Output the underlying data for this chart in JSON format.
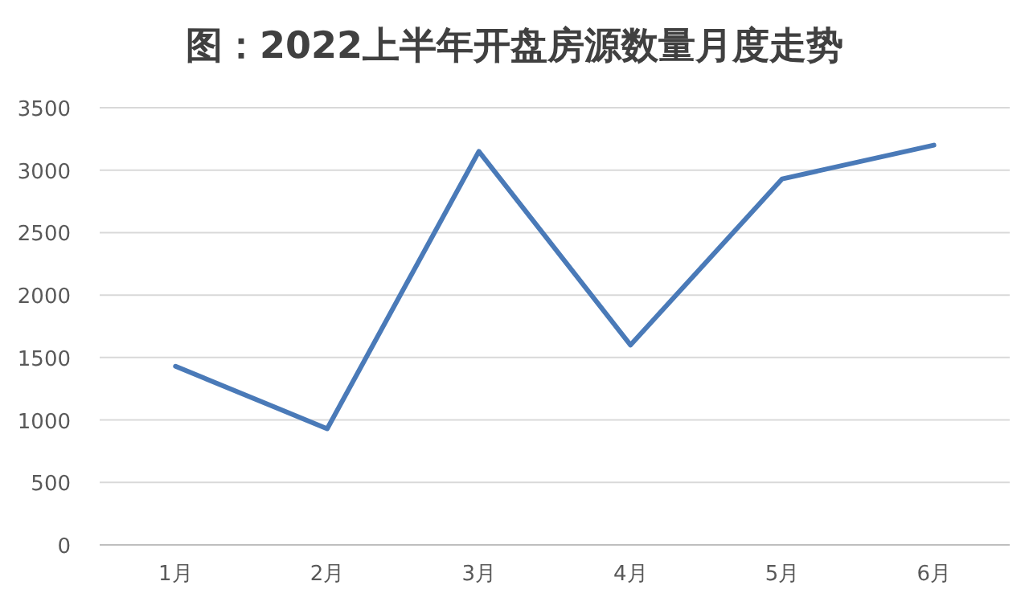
{
  "chart_data": {
    "type": "line",
    "title": "图：2022上半年开盘房源数量月度走势",
    "categories": [
      "1月",
      "2月",
      "3月",
      "4月",
      "5月",
      "6月"
    ],
    "values": [
      1430,
      930,
      3150,
      1600,
      2930,
      3200
    ],
    "color": "#4a7ab8",
    "ylim": [
      0,
      3500
    ],
    "yticks": [
      0,
      500,
      1000,
      1500,
      2000,
      2500,
      3000,
      3500
    ],
    "grid": "y"
  }
}
